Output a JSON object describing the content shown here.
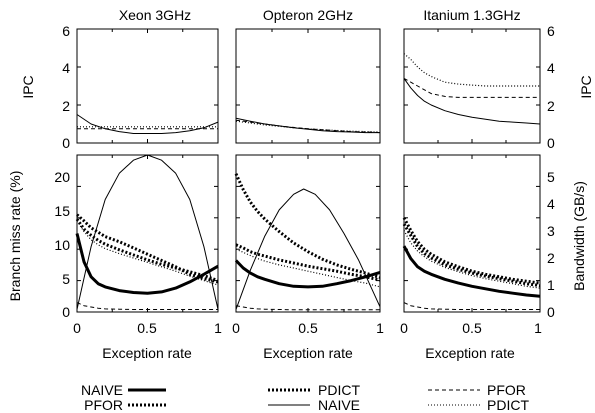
{
  "colors": {
    "ink": "#000000",
    "background": "#ffffff"
  },
  "legend": {
    "left": [
      {
        "label": "NAIVE",
        "style": "thick-solid"
      },
      {
        "label": "PFOR",
        "style": "thick-dotted"
      }
    ],
    "middle": [
      {
        "label": "PDICT",
        "style": "thick-dotted"
      },
      {
        "label": "NAIVE",
        "style": "thin-solid"
      }
    ],
    "right": [
      {
        "label": "PFOR",
        "style": "thin-dashed"
      },
      {
        "label": "PDICT",
        "style": "thin-dotted"
      }
    ]
  },
  "chart_data": [
    {
      "type": "line",
      "title": "Xeon 3GHz",
      "ipc": {
        "ylabel": "IPC",
        "ylim": [
          0,
          6
        ],
        "yticks": [
          "0",
          "2",
          "4",
          "6"
        ],
        "x": [
          0,
          0.1,
          0.2,
          0.3,
          0.4,
          0.5,
          0.6,
          0.7,
          0.8,
          0.9,
          1.0
        ],
        "series": [
          {
            "style": "thin-solid",
            "values": [
              1.5,
              1.0,
              0.75,
              0.6,
              0.5,
              0.5,
              0.5,
              0.55,
              0.65,
              0.8,
              1.1
            ]
          },
          {
            "style": "thin-dashed",
            "values": [
              0.75,
              0.75,
              0.75,
              0.75,
              0.75,
              0.75,
              0.75,
              0.75,
              0.75,
              0.75,
              0.75
            ]
          },
          {
            "style": "thin-dotted",
            "values": [
              0.85,
              0.85,
              0.85,
              0.85,
              0.85,
              0.85,
              0.85,
              0.85,
              0.85,
              0.85,
              0.85
            ]
          }
        ]
      },
      "miss": {
        "ylabel": "Branch miss rate (%)",
        "ylim": [
          0,
          25
        ],
        "yticks": [
          "0",
          "5",
          "10",
          "15",
          "20"
        ],
        "x": [
          0,
          0.05,
          0.1,
          0.15,
          0.2,
          0.3,
          0.4,
          0.5,
          0.6,
          0.7,
          0.8,
          0.9,
          1.0
        ],
        "series": [
          {
            "style": "thick-solid",
            "values": [
              12.5,
              8.0,
              5.6,
              4.5,
              4.0,
              3.4,
              3.1,
              3.0,
              3.2,
              3.8,
              4.8,
              6.0,
              7.3
            ]
          },
          {
            "style": "thick-dotted",
            "values": [
              15.5,
              14.5,
              13.4,
              12.7,
              12.0,
              11.2,
              10.2,
              9.2,
              8.2,
              7.2,
              6.0,
              5.3,
              4.8
            ]
          },
          {
            "style": "thick-dotted",
            "values": [
              14.8,
              13.2,
              12.2,
              11.4,
              10.8,
              9.9,
              9.1,
              8.3,
              7.6,
              7.0,
              6.4,
              5.8,
              5.0
            ]
          },
          {
            "style": "thin-dotted",
            "values": [
              14.5,
              12.8,
              11.5,
              10.7,
              10.1,
              9.3,
              8.6,
              7.9,
              7.2,
              6.5,
              5.7,
              5.0,
              4.3
            ]
          },
          {
            "style": "thin-dashed",
            "values": [
              1.5,
              1.0,
              0.8,
              0.6,
              0.5,
              0.45,
              0.4,
              0.4,
              0.4,
              0.4,
              0.4,
              0.4,
              0.4
            ]
          }
        ]
      },
      "bandwidth": {
        "x": [
          0,
          0.1,
          0.2,
          0.3,
          0.4,
          0.5,
          0.6,
          0.7,
          0.8,
          0.9,
          1.0
        ],
        "values": [
          0.1,
          2.5,
          4.3,
          5.3,
          5.8,
          6.0,
          5.8,
          5.3,
          4.3,
          2.5,
          0.1
        ]
      }
    },
    {
      "type": "line",
      "title": "Opteron 2GHz",
      "ipc": {
        "x": [
          0,
          0.1,
          0.2,
          0.3,
          0.4,
          0.5,
          0.6,
          0.7,
          0.8,
          0.9,
          1.0
        ],
        "series": [
          {
            "style": "thin-solid",
            "values": [
              1.3,
              1.15,
              1.0,
              0.9,
              0.8,
              0.72,
              0.65,
              0.6,
              0.58,
              0.55,
              0.55
            ]
          },
          {
            "style": "thin-dashed",
            "values": [
              1.2,
              1.1,
              1.0,
              0.9,
              0.82,
              0.75,
              0.7,
              0.65,
              0.6,
              0.58,
              0.55
            ]
          },
          {
            "style": "thin-dotted",
            "values": [
              1.15,
              1.05,
              0.95,
              0.88,
              0.8,
              0.75,
              0.7,
              0.66,
              0.62,
              0.6,
              0.58
            ]
          }
        ]
      },
      "miss": {
        "ylim": [
          0,
          25
        ],
        "x": [
          0,
          0.05,
          0.1,
          0.15,
          0.2,
          0.3,
          0.4,
          0.5,
          0.6,
          0.7,
          0.8,
          0.9,
          1.0
        ],
        "series": [
          {
            "style": "thick-solid",
            "values": [
              8.2,
              7.0,
              6.2,
              5.6,
              5.2,
              4.5,
              4.1,
              4.0,
              4.1,
              4.5,
              5.0,
              5.6,
              6.3
            ]
          },
          {
            "style": "thick-dotted",
            "values": [
              22.0,
              19.5,
              17.5,
              16.0,
              14.8,
              12.8,
              11.0,
              9.6,
              8.4,
              7.5,
              6.8,
              6.2,
              5.5
            ]
          },
          {
            "style": "thick-dotted",
            "values": [
              10.7,
              10.2,
              9.6,
              9.2,
              8.9,
              8.3,
              7.8,
              7.3,
              6.9,
              6.5,
              6.0,
              5.6,
              5.1
            ]
          },
          {
            "style": "thin-dotted",
            "values": [
              10.0,
              9.5,
              9.0,
              8.5,
              8.1,
              7.5,
              7.0,
              6.5,
              6.0,
              5.5,
              5.0,
              4.6,
              4.0
            ]
          },
          {
            "style": "thin-dashed",
            "values": [
              1.0,
              0.8,
              0.6,
              0.5,
              0.45,
              0.4,
              0.35,
              0.35,
              0.35,
              0.35,
              0.35,
              0.35,
              0.35
            ]
          }
        ]
      },
      "bandwidth": {
        "x": [
          0,
          0.1,
          0.2,
          0.3,
          0.4,
          0.47,
          0.55,
          0.65,
          0.75,
          0.85,
          0.95,
          1.0
        ],
        "values": [
          0.1,
          1.6,
          2.9,
          3.9,
          4.5,
          4.7,
          4.5,
          3.9,
          3.0,
          2.0,
          0.8,
          0.2
        ]
      }
    },
    {
      "type": "line",
      "title": "Itanium 1.3GHz",
      "ipc": {
        "ylabel": "IPC",
        "ylim": [
          0,
          6
        ],
        "yticks": [
          "0",
          "2",
          "4",
          "6"
        ],
        "x": [
          0,
          0.05,
          0.1,
          0.15,
          0.2,
          0.3,
          0.4,
          0.5,
          0.6,
          0.7,
          0.8,
          0.9,
          1.0
        ],
        "series": [
          {
            "style": "thin-solid",
            "values": [
              3.4,
              2.9,
              2.5,
              2.2,
              2.0,
              1.7,
              1.5,
              1.35,
              1.25,
              1.15,
              1.1,
              1.05,
              1.0
            ]
          },
          {
            "style": "thin-dashed",
            "values": [
              3.4,
              3.2,
              3.0,
              2.8,
              2.6,
              2.45,
              2.4,
              2.4,
              2.4,
              2.4,
              2.4,
              2.4,
              2.4
            ]
          },
          {
            "style": "thin-dotted",
            "values": [
              4.7,
              4.4,
              4.0,
              3.7,
              3.5,
              3.2,
              3.1,
              3.05,
              3.0,
              3.0,
              3.0,
              3.0,
              3.0
            ]
          }
        ]
      },
      "miss": {
        "ylim": [
          0,
          25
        ],
        "x": [
          0,
          0.05,
          0.1,
          0.15,
          0.2,
          0.3,
          0.4,
          0.5,
          0.6,
          0.7,
          0.8,
          0.9,
          1.0
        ],
        "series": [
          {
            "style": "thick-solid",
            "values": [
              10.5,
              8.5,
              7.2,
              6.5,
              6.0,
              5.2,
              4.6,
              4.1,
              3.7,
              3.3,
              3.0,
              2.7,
              2.5
            ]
          },
          {
            "style": "thick-dotted",
            "values": [
              15.0,
              13.0,
              11.2,
              10.0,
              9.2,
              8.0,
              7.2,
              6.5,
              6.0,
              5.6,
              5.2,
              4.9,
              4.6
            ]
          },
          {
            "style": "thick-dotted",
            "values": [
              14.0,
              12.2,
              10.4,
              9.3,
              8.6,
              7.5,
              6.8,
              6.2,
              5.7,
              5.3,
              4.9,
              4.5,
              4.2
            ]
          },
          {
            "style": "thin-dotted",
            "values": [
              13.0,
              11.0,
              9.7,
              8.8,
              8.1,
              7.1,
              6.4,
              5.8,
              5.3,
              4.9,
              4.5,
              4.1,
              3.8
            ]
          },
          {
            "style": "thin-dashed",
            "values": [
              1.5,
              1.0,
              0.8,
              0.6,
              0.5,
              0.45,
              0.4,
              0.4,
              0.4,
              0.4,
              0.4,
              0.4,
              0.4
            ]
          }
        ]
      },
      "bandwidth": {
        "ylabel": "Bandwidth (GB/s)",
        "ylim": [
          0,
          6
        ],
        "yticks": [
          "0",
          "1",
          "2",
          "3",
          "4",
          "5"
        ]
      }
    }
  ],
  "shared": {
    "ipc_yticks": [
      "0",
      "2",
      "4",
      "6"
    ],
    "ipc_ylabel": "IPC",
    "miss_ylabel": "Branch miss rate (%)",
    "miss_yticks": [
      "0",
      "5",
      "10",
      "15",
      "20"
    ],
    "bw_ylabel": "Bandwidth (GB/s)",
    "bw_yticks": [
      "0",
      "1",
      "2",
      "3",
      "4",
      "5"
    ],
    "xticks": [
      "0",
      "0.5",
      "1"
    ],
    "xlabel": "Exception rate"
  }
}
